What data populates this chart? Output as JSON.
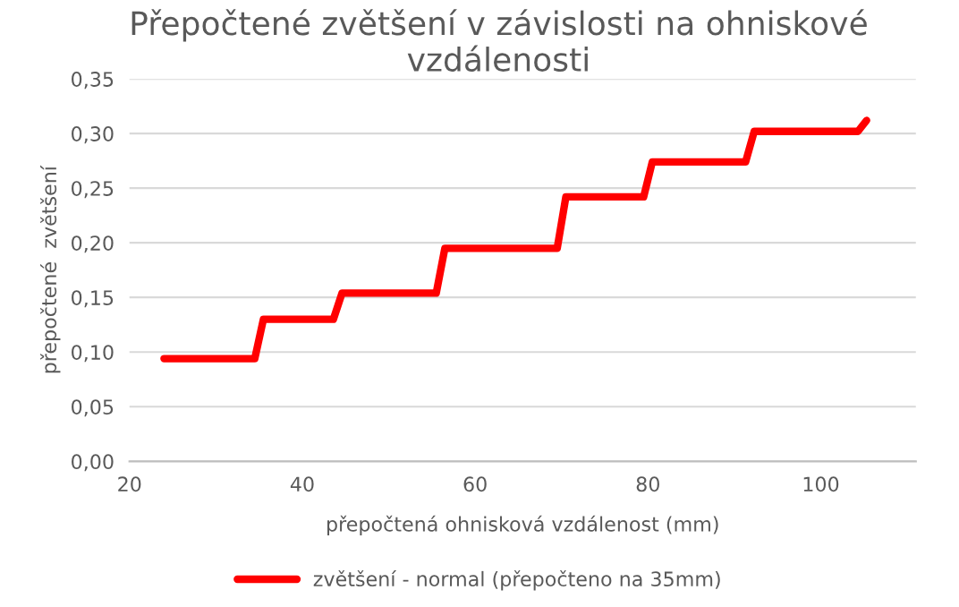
{
  "chart_data": {
    "type": "line",
    "title": "Přepočtené zvětšení v závislosti na ohniskové vzdálenosti",
    "xlabel": "přepočtená ohnisková vzdálenost (mm)",
    "ylabel": "přepočtené  zvětšení",
    "series": [
      {
        "name": "zvětšení - normal (přepočteno na 35mm)",
        "color": "#ff0000",
        "x": [
          24,
          34.5,
          35.5,
          43.6,
          44.6,
          55.5,
          56.5,
          69.5,
          70.5,
          79.5,
          80.5,
          91.3,
          92.3,
          104.3,
          105.3
        ],
        "values": [
          0.094,
          0.094,
          0.13,
          0.13,
          0.154,
          0.154,
          0.195,
          0.195,
          0.242,
          0.242,
          0.274,
          0.274,
          0.302,
          0.302,
          0.312
        ]
      }
    ],
    "xlim": [
      20,
      111
    ],
    "xticks": [
      20,
      40,
      60,
      80,
      100
    ],
    "ylim": [
      0,
      0.35
    ],
    "yticks": [
      {
        "value": 0,
        "label": "0,00"
      },
      {
        "value": 0.05,
        "label": "0,05"
      },
      {
        "value": 0.1,
        "label": "0,10"
      },
      {
        "value": 0.15,
        "label": "0,15"
      },
      {
        "value": 0.2,
        "label": "0,20"
      },
      {
        "value": 0.25,
        "label": "0,25"
      },
      {
        "value": 0.3,
        "label": "0,30"
      },
      {
        "value": 0.35,
        "label": "0,35"
      }
    ],
    "grid": "y",
    "legend": "bottom",
    "line_style": "solid",
    "marker": "none"
  }
}
